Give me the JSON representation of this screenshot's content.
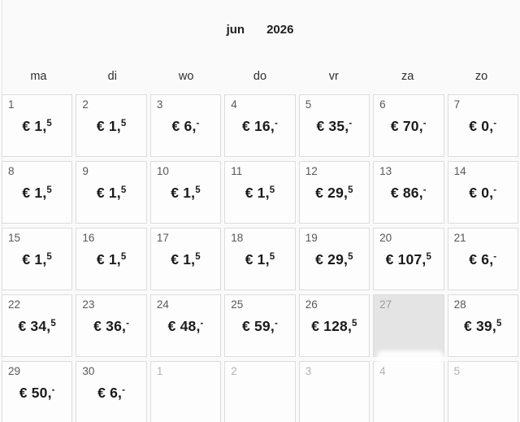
{
  "header": {
    "month": "jun",
    "year": "2026"
  },
  "weekdays": [
    "ma",
    "di",
    "wo",
    "do",
    "vr",
    "za",
    "zo"
  ],
  "colors": {
    "page_bg": "#fafafa",
    "cell_bg": "#fdfdfd",
    "cell_border": "#dcdcdc",
    "muted_cell_bg": "#e4e4e4",
    "price_text": "#1b1b1b",
    "day_number": "#585858",
    "next_month_number": "#b3b3b3"
  },
  "days": [
    {
      "day": "1",
      "amount": "€ 1,",
      "sup": "5",
      "state": "current"
    },
    {
      "day": "2",
      "amount": "€ 1,",
      "sup": "5",
      "state": "current"
    },
    {
      "day": "3",
      "amount": "€ 6,",
      "sup": "-",
      "state": "current"
    },
    {
      "day": "4",
      "amount": "€ 16,",
      "sup": "-",
      "state": "current"
    },
    {
      "day": "5",
      "amount": "€ 35,",
      "sup": "-",
      "state": "current"
    },
    {
      "day": "6",
      "amount": "€ 70,",
      "sup": "-",
      "state": "current"
    },
    {
      "day": "7",
      "amount": "€ 0,",
      "sup": "-",
      "state": "current"
    },
    {
      "day": "8",
      "amount": "€ 1,",
      "sup": "5",
      "state": "current"
    },
    {
      "day": "9",
      "amount": "€ 1,",
      "sup": "5",
      "state": "current"
    },
    {
      "day": "10",
      "amount": "€ 1,",
      "sup": "5",
      "state": "current"
    },
    {
      "day": "11",
      "amount": "€ 1,",
      "sup": "5",
      "state": "current"
    },
    {
      "day": "12",
      "amount": "€ 29,",
      "sup": "5",
      "state": "current"
    },
    {
      "day": "13",
      "amount": "€ 86,",
      "sup": "-",
      "state": "current"
    },
    {
      "day": "14",
      "amount": "€ 0,",
      "sup": "-",
      "state": "current"
    },
    {
      "day": "15",
      "amount": "€ 1,",
      "sup": "5",
      "state": "current"
    },
    {
      "day": "16",
      "amount": "€ 1,",
      "sup": "5",
      "state": "current"
    },
    {
      "day": "17",
      "amount": "€ 1,",
      "sup": "5",
      "state": "current"
    },
    {
      "day": "18",
      "amount": "€ 1,",
      "sup": "5",
      "state": "current"
    },
    {
      "day": "19",
      "amount": "€ 29,",
      "sup": "5",
      "state": "current"
    },
    {
      "day": "20",
      "amount": "€ 107,",
      "sup": "5",
      "state": "current"
    },
    {
      "day": "21",
      "amount": "€ 6,",
      "sup": "-",
      "state": "current"
    },
    {
      "day": "22",
      "amount": "€ 34,",
      "sup": "5",
      "state": "current"
    },
    {
      "day": "23",
      "amount": "€ 36,",
      "sup": "-",
      "state": "current"
    },
    {
      "day": "24",
      "amount": "€ 48,",
      "sup": "-",
      "state": "current"
    },
    {
      "day": "25",
      "amount": "€ 59,",
      "sup": "-",
      "state": "current"
    },
    {
      "day": "26",
      "amount": "€ 128,",
      "sup": "5",
      "state": "current"
    },
    {
      "day": "27",
      "amount": "",
      "sup": "",
      "state": "muted"
    },
    {
      "day": "28",
      "amount": "€ 39,",
      "sup": "5",
      "state": "current"
    },
    {
      "day": "29",
      "amount": "€ 50,",
      "sup": "-",
      "state": "current"
    },
    {
      "day": "30",
      "amount": "€ 6,",
      "sup": "-",
      "state": "current"
    },
    {
      "day": "1",
      "amount": "",
      "sup": "",
      "state": "next"
    },
    {
      "day": "2",
      "amount": "",
      "sup": "",
      "state": "next"
    },
    {
      "day": "3",
      "amount": "",
      "sup": "",
      "state": "next"
    },
    {
      "day": "4",
      "amount": "",
      "sup": "",
      "state": "next"
    },
    {
      "day": "5",
      "amount": "",
      "sup": "",
      "state": "next"
    }
  ]
}
